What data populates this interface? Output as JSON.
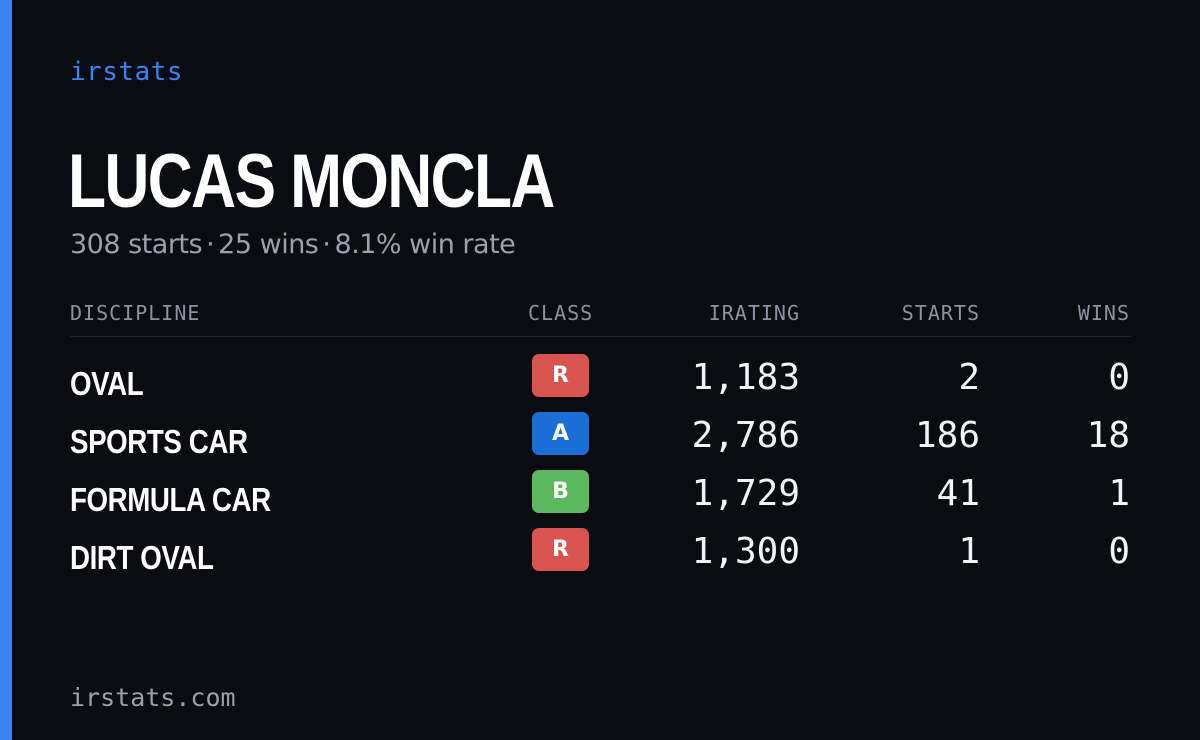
{
  "brand": "irstats",
  "driver": {
    "name": "LUCAS MONCLA",
    "starts_text": "308 starts",
    "wins_text": "25 wins",
    "win_rate_text": "8.1% win rate",
    "separator": "·"
  },
  "table": {
    "headers": {
      "discipline": "DISCIPLINE",
      "class": "CLASS",
      "irating": "IRATING",
      "starts": "STARTS",
      "wins": "WINS"
    },
    "rows": [
      {
        "discipline": "OVAL",
        "class": "R",
        "class_color": "#d9534f",
        "irating": "1,183",
        "starts": "2",
        "wins": "0"
      },
      {
        "discipline": "SPORTS CAR",
        "class": "A",
        "class_color": "#1a6fd6",
        "irating": "2,786",
        "starts": "186",
        "wins": "18"
      },
      {
        "discipline": "FORMULA CAR",
        "class": "B",
        "class_color": "#5cb85c",
        "irating": "1,729",
        "starts": "41",
        "wins": "1"
      },
      {
        "discipline": "DIRT OVAL",
        "class": "R",
        "class_color": "#d9534f",
        "irating": "1,300",
        "starts": "1",
        "wins": "0"
      }
    ]
  },
  "footer": "irstats.com",
  "colors": {
    "background": "#0a0c12",
    "accent": "#3b82f6",
    "muted_text": "#9aa1ad"
  }
}
